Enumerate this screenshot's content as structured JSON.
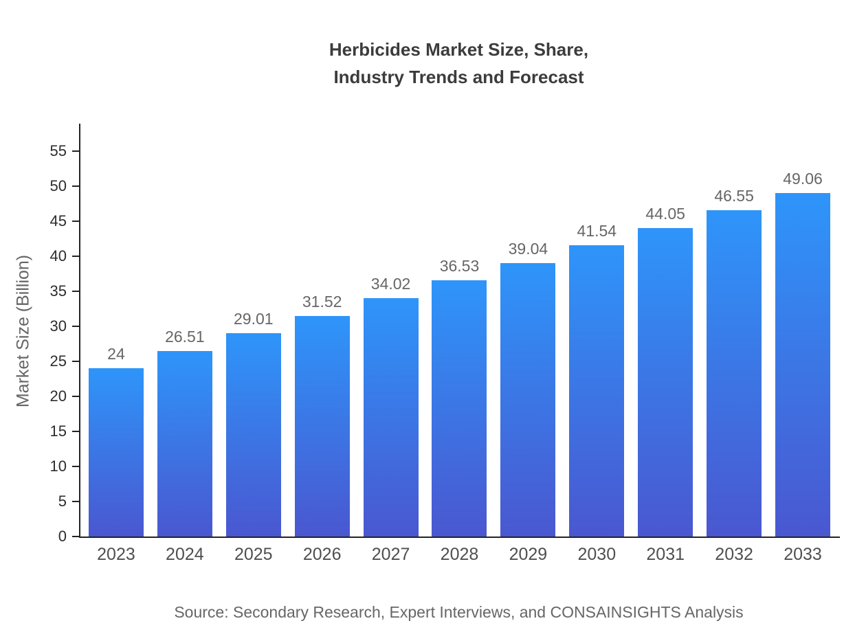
{
  "title": "Herbicides Market Size, Share,\nIndustry Trends and Forecast",
  "source": "Source: Secondary Research, Expert Interviews, and CONSAINSIGHTS Analysis",
  "colors": {
    "bar_gradient_top": "#2e95fa",
    "bar_gradient_bottom": "#4a57d0",
    "axis": "#222222",
    "title_text": "#3c3c3c",
    "tick_text": "#2d2d2d",
    "category_text": "#4f4f4f",
    "value_label_text": "#666666",
    "source_text": "#666666"
  },
  "chart_data": {
    "type": "bar",
    "title": "Herbicides Market Size, Share, Industry Trends and Forecast",
    "categories": [
      "2023",
      "2024",
      "2025",
      "2026",
      "2027",
      "2028",
      "2029",
      "2030",
      "2031",
      "2032",
      "2033"
    ],
    "values": [
      24,
      26.51,
      29.01,
      31.52,
      34.02,
      36.53,
      39.04,
      41.54,
      44.05,
      46.55,
      49.06
    ],
    "xlabel": "",
    "ylabel": "Market Size (Billion)",
    "ylim": [
      0,
      55
    ],
    "yticks": [
      0,
      5,
      10,
      15,
      20,
      25,
      30,
      35,
      40,
      45,
      50,
      55
    ],
    "grid": false,
    "legend": "none",
    "bar_color_top": "#2e95fa",
    "bar_color_bottom": "#4a57d0"
  }
}
